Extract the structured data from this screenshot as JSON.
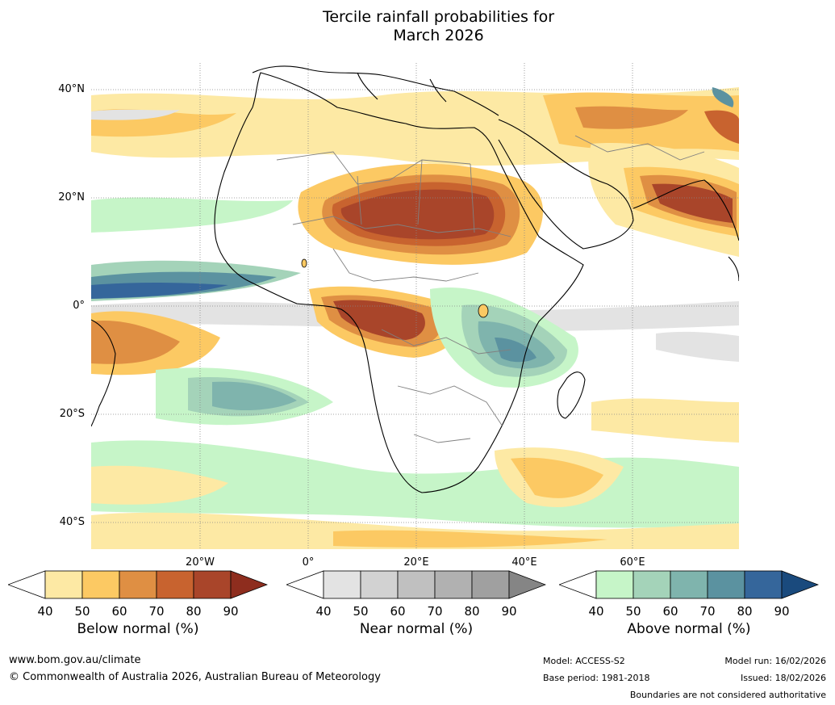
{
  "title": {
    "line1": "Tercile rainfall probabilities for",
    "line2": "March 2026"
  },
  "axes": {
    "lat_labels": [
      "40°N",
      "20°N",
      "0°",
      "20°S",
      "40°S"
    ],
    "lon_labels": [
      "20°W",
      "0°",
      "20°E",
      "40°E",
      "60°E"
    ]
  },
  "colorbars": [
    {
      "name": "below",
      "label": "Below normal (%)",
      "ticks": [
        "40",
        "50",
        "60",
        "70",
        "80",
        "90"
      ],
      "colors": [
        "#ffffff",
        "#fde9a4",
        "#fcc963",
        "#df8f43",
        "#c8632f",
        "#a9452a",
        "#8e2d1e"
      ]
    },
    {
      "name": "near",
      "label": "Near normal (%)",
      "ticks": [
        "40",
        "50",
        "60",
        "70",
        "80",
        "90"
      ],
      "colors": [
        "#ffffff",
        "#e3e3e3",
        "#d2d2d2",
        "#c0c0c0",
        "#b1b1b1",
        "#a0a0a0",
        "#858585"
      ]
    },
    {
      "name": "above",
      "label": "Above normal (%)",
      "ticks": [
        "40",
        "50",
        "60",
        "70",
        "80",
        "90"
      ],
      "colors": [
        "#ffffff",
        "#c6f5c8",
        "#a4d3b9",
        "#7fb4ad",
        "#5b92a0",
        "#35669b",
        "#1a4a7d"
      ]
    }
  ],
  "footer": {
    "website": "www.bom.gov.au/climate",
    "copyright": "© Commonwealth of Australia 2026, Australian Bureau of Meteorology",
    "model": "Model: ACCESS-S2",
    "base_period": "Base period: 1981-2018",
    "model_run": "Model run: 16/02/2026",
    "issued": "Issued: 18/02/2026",
    "disclaimer": "Boundaries are not considered authoritative"
  }
}
